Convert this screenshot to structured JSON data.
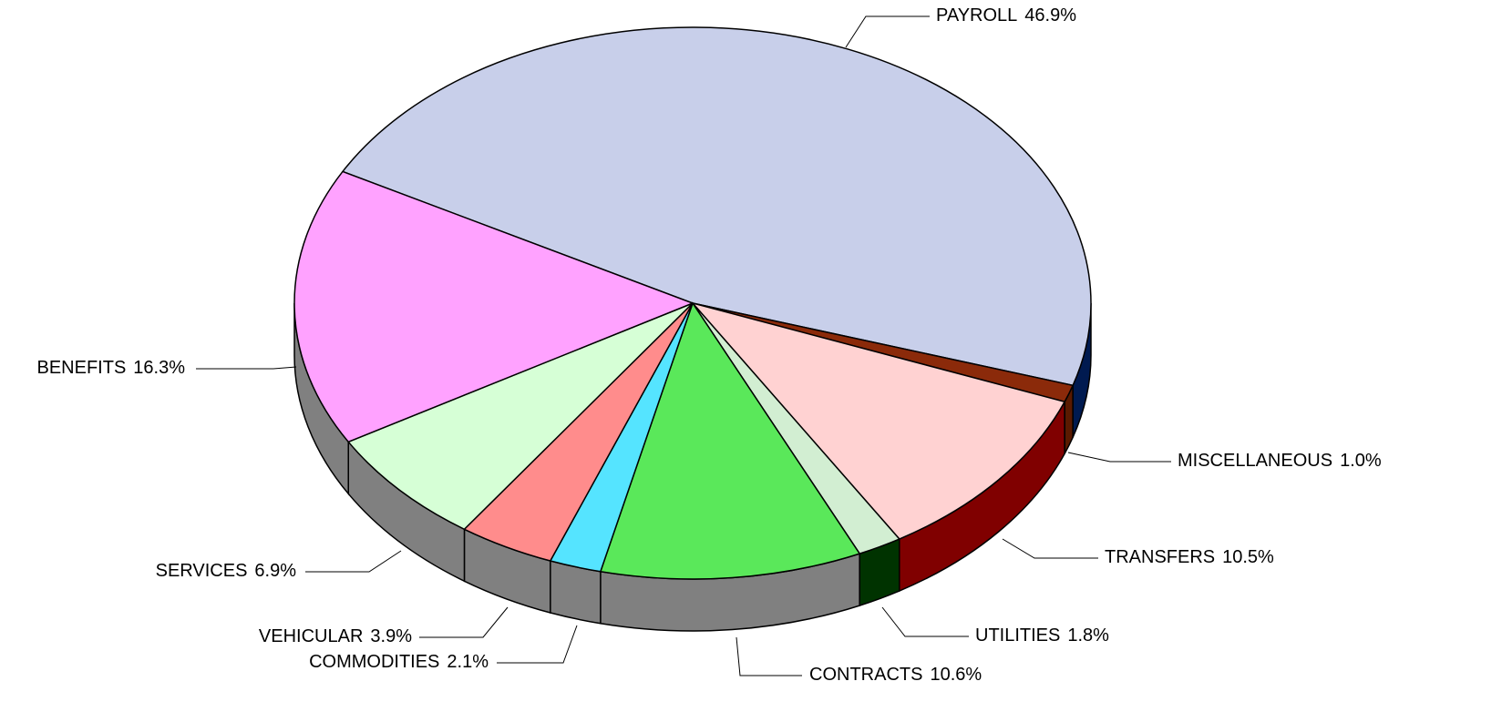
{
  "chart_data": {
    "type": "pie",
    "categories": [
      "PAYROLL",
      "MISCELLANEOUS",
      "TRANSFERS",
      "UTILITIES",
      "CONTRACTS",
      "COMMODITIES",
      "VEHICULAR",
      "SERVICES",
      "BENEFITS"
    ],
    "values": [
      46.9,
      1.0,
      10.5,
      1.8,
      10.6,
      2.1,
      3.9,
      6.9,
      16.3
    ],
    "value_labels": [
      "46.9%",
      "1.0%",
      "10.5%",
      "1.8%",
      "10.6%",
      "2.1%",
      "3.9%",
      "6.9%",
      "16.3%"
    ],
    "colors": [
      "#c8cfea",
      "#8b2a0a",
      "#ffd2d2",
      "#d2eed2",
      "#5ae85a",
      "#55e4ff",
      "#ff8c8c",
      "#d6ffd6",
      "#ffa2ff"
    ],
    "side_colors": [
      "#001a50",
      "#5a1a00",
      "#800000",
      "#003300",
      "#808080",
      "#808080",
      "#808080",
      "#808080",
      "#808080"
    ]
  }
}
